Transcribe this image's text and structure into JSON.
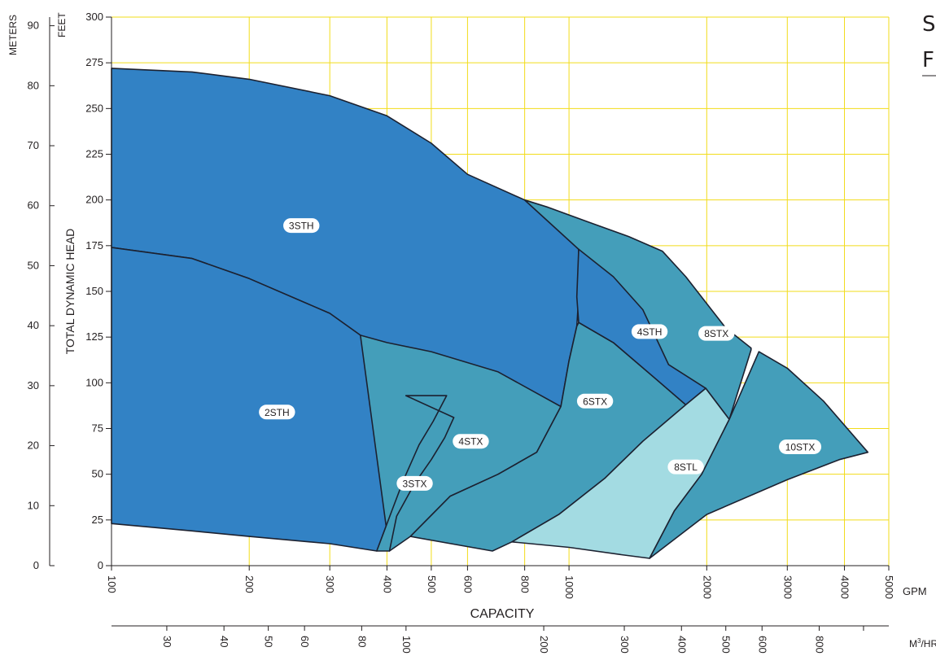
{
  "chart_data": {
    "type": "area",
    "title_fragment": "S",
    "subtitle_fragment": "F",
    "ylabel": "TOTAL DYNAMIC HEAD",
    "xlabel": "CAPACITY",
    "y_units_left": "METERS",
    "y_units_right": "FEET",
    "x_units_gpm": "GPM",
    "x_units_m3": "M",
    "x_units_m3_sup": "3",
    "x_units_m3_tail": "/HR",
    "x_scale": "log",
    "x_range_gpm": [
      100,
      5000
    ],
    "y_range_ft": [
      0,
      300
    ],
    "grid": true,
    "grid_color": "#f2dc1a",
    "feet_ticks": [
      0,
      25,
      50,
      75,
      100,
      125,
      150,
      175,
      200,
      225,
      250,
      275,
      300
    ],
    "meter_ticks": [
      0,
      10,
      20,
      30,
      40,
      50,
      60,
      70,
      80,
      90
    ],
    "gpm_ticks": [
      100,
      200,
      300,
      400,
      500,
      600,
      800,
      1000,
      2000,
      3000,
      4000,
      5000
    ],
    "m3hr_ticks": [
      30,
      40,
      50,
      60,
      80,
      100,
      200,
      300,
      400,
      500,
      600,
      800
    ],
    "colors": {
      "dark_blue": "#3282c5",
      "teal": "#449eba",
      "light": "#a3dbe2",
      "outline": "#1c2130"
    },
    "series": [
      {
        "name": "3STH",
        "fill": "dark_blue",
        "label_at": [
          260,
          186
        ],
        "points": [
          [
            100,
            272
          ],
          [
            150,
            270
          ],
          [
            200,
            266
          ],
          [
            300,
            257
          ],
          [
            400,
            246
          ],
          [
            500,
            231
          ],
          [
            600,
            214
          ],
          [
            800,
            200
          ],
          [
            1050,
            173
          ],
          [
            1050,
            147
          ],
          [
            1040,
            131
          ],
          [
            1000,
            112
          ],
          [
            960,
            87
          ],
          [
            500,
            101
          ],
          [
            400,
            115
          ],
          [
            350,
            126
          ],
          [
            300,
            138
          ],
          [
            200,
            157
          ],
          [
            150,
            168
          ],
          [
            100,
            174
          ]
        ]
      },
      {
        "name": "2STH",
        "fill": "dark_blue",
        "label_at": [
          230,
          84
        ],
        "points": [
          [
            100,
            174
          ],
          [
            150,
            168
          ],
          [
            200,
            157
          ],
          [
            300,
            138
          ],
          [
            350,
            126
          ],
          [
            400,
            115
          ],
          [
            500,
            101
          ],
          [
            540,
            93
          ],
          [
            505,
            79
          ],
          [
            470,
            66
          ],
          [
            435,
            47
          ],
          [
            410,
            30
          ],
          [
            380,
            8
          ],
          [
            300,
            12
          ],
          [
            200,
            16
          ],
          [
            150,
            19
          ],
          [
            100,
            23
          ]
        ]
      },
      {
        "name": "4STX",
        "fill": "teal",
        "label_at": [
          610,
          68
        ],
        "points": [
          [
            350,
            126
          ],
          [
            400,
            122
          ],
          [
            500,
            117
          ],
          [
            700,
            106
          ],
          [
            960,
            87
          ],
          [
            850,
            62
          ],
          [
            700,
            50
          ],
          [
            550,
            38
          ],
          [
            450,
            16
          ],
          [
            405,
            8
          ]
        ]
      },
      {
        "name": "3STX",
        "fill": "teal",
        "label_at": [
          460,
          45
        ],
        "points": [
          [
            440,
            93
          ],
          [
            560,
            81
          ],
          [
            535,
            70
          ],
          [
            500,
            58
          ],
          [
            460,
            45
          ],
          [
            420,
            27
          ],
          [
            405,
            8
          ],
          [
            380,
            8
          ],
          [
            410,
            30
          ],
          [
            435,
            47
          ],
          [
            470,
            66
          ],
          [
            505,
            79
          ],
          [
            540,
            93
          ]
        ]
      },
      {
        "name": "6STX",
        "fill": "teal",
        "label_at": [
          1140,
          90
        ],
        "points": [
          [
            1050,
            133
          ],
          [
            1250,
            122
          ],
          [
            1550,
            102
          ],
          [
            1800,
            88
          ],
          [
            1450,
            68
          ],
          [
            1200,
            48
          ],
          [
            950,
            28
          ],
          [
            750,
            13
          ],
          [
            680,
            8
          ],
          [
            450,
            16
          ],
          [
            550,
            38
          ],
          [
            700,
            50
          ],
          [
            850,
            62
          ],
          [
            960,
            87
          ],
          [
            1000,
            112
          ],
          [
            1040,
            131
          ]
        ]
      },
      {
        "name": "8STX",
        "fill": "teal",
        "label_at": [
          2100,
          127
        ],
        "points": [
          [
            800,
            200
          ],
          [
            900,
            196
          ],
          [
            1100,
            188
          ],
          [
            1350,
            180
          ],
          [
            1600,
            172
          ],
          [
            1800,
            158
          ],
          [
            2200,
            130
          ],
          [
            2500,
            119
          ],
          [
            2500,
            118
          ],
          [
            2240,
            80
          ],
          [
            1990,
            97
          ],
          [
            1800,
            88
          ],
          [
            1550,
            102
          ],
          [
            1250,
            122
          ],
          [
            1050,
            133
          ],
          [
            1050,
            147
          ],
          [
            1050,
            173
          ]
        ]
      },
      {
        "name": "4STH",
        "fill": "dark_blue",
        "label_at": [
          1500,
          128
        ],
        "points": [
          [
            1050,
            173
          ],
          [
            1250,
            158
          ],
          [
            1450,
            140
          ],
          [
            1650,
            110
          ],
          [
            1990,
            97
          ],
          [
            1800,
            88
          ],
          [
            1550,
            102
          ],
          [
            1250,
            122
          ],
          [
            1050,
            133
          ],
          [
            1040,
            147
          ]
        ]
      },
      {
        "name": "8STL",
        "fill": "light",
        "label_at": [
          1800,
          54
        ],
        "points": [
          [
            1990,
            97
          ],
          [
            2240,
            80
          ],
          [
            1950,
            50
          ],
          [
            1700,
            30
          ],
          [
            1500,
            4
          ],
          [
            1300,
            6
          ],
          [
            1000,
            10
          ],
          [
            750,
            13
          ],
          [
            950,
            28
          ],
          [
            1200,
            48
          ],
          [
            1450,
            68
          ],
          [
            1800,
            88
          ]
        ]
      },
      {
        "name": "10STX",
        "fill": "teal",
        "label_at": [
          3200,
          65
        ],
        "points": [
          [
            2600,
            117
          ],
          [
            3000,
            108
          ],
          [
            3600,
            90
          ],
          [
            4500,
            62
          ],
          [
            3900,
            58
          ],
          [
            3000,
            47
          ],
          [
            2000,
            28
          ],
          [
            1500,
            4
          ],
          [
            1700,
            30
          ],
          [
            1950,
            50
          ],
          [
            2240,
            80
          ]
        ]
      }
    ]
  }
}
